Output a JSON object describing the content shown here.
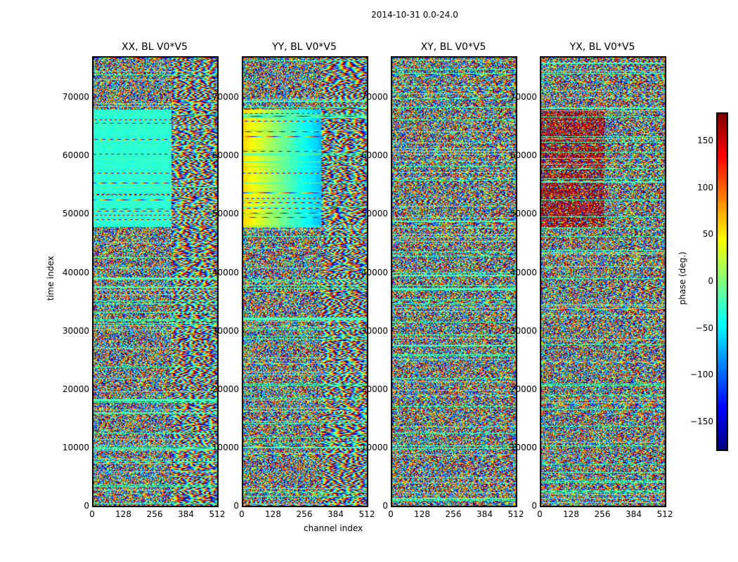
{
  "chart_data": {
    "type": "heatmap",
    "suptitle": "2014-10-31 0.0-24.0",
    "xlabel": "channel index",
    "ylabel": "time index",
    "x_range": [
      0,
      512
    ],
    "y_range": [
      0,
      77000
    ],
    "x_ticks": [
      "0",
      "128",
      "256",
      "384",
      "512"
    ],
    "y_ticks": [
      "0",
      "10000",
      "20000",
      "30000",
      "40000",
      "50000",
      "60000",
      "70000"
    ],
    "colorbar": {
      "label": "phase (deg.)",
      "range": [
        -180,
        180
      ],
      "ticks": [
        "150",
        "100",
        "50",
        "0",
        "−50",
        "−100",
        "−150"
      ],
      "colormap": "jet"
    },
    "panels": [
      {
        "title": "XX, BL V0*V5",
        "pattern": "coherent-green"
      },
      {
        "title": "YY, BL V0*V5",
        "pattern": "coherent-yellow"
      },
      {
        "title": "XY, BL V0*V5",
        "pattern": "noise"
      },
      {
        "title": "YX, BL V0*V5",
        "pattern": "noise-red"
      }
    ]
  }
}
